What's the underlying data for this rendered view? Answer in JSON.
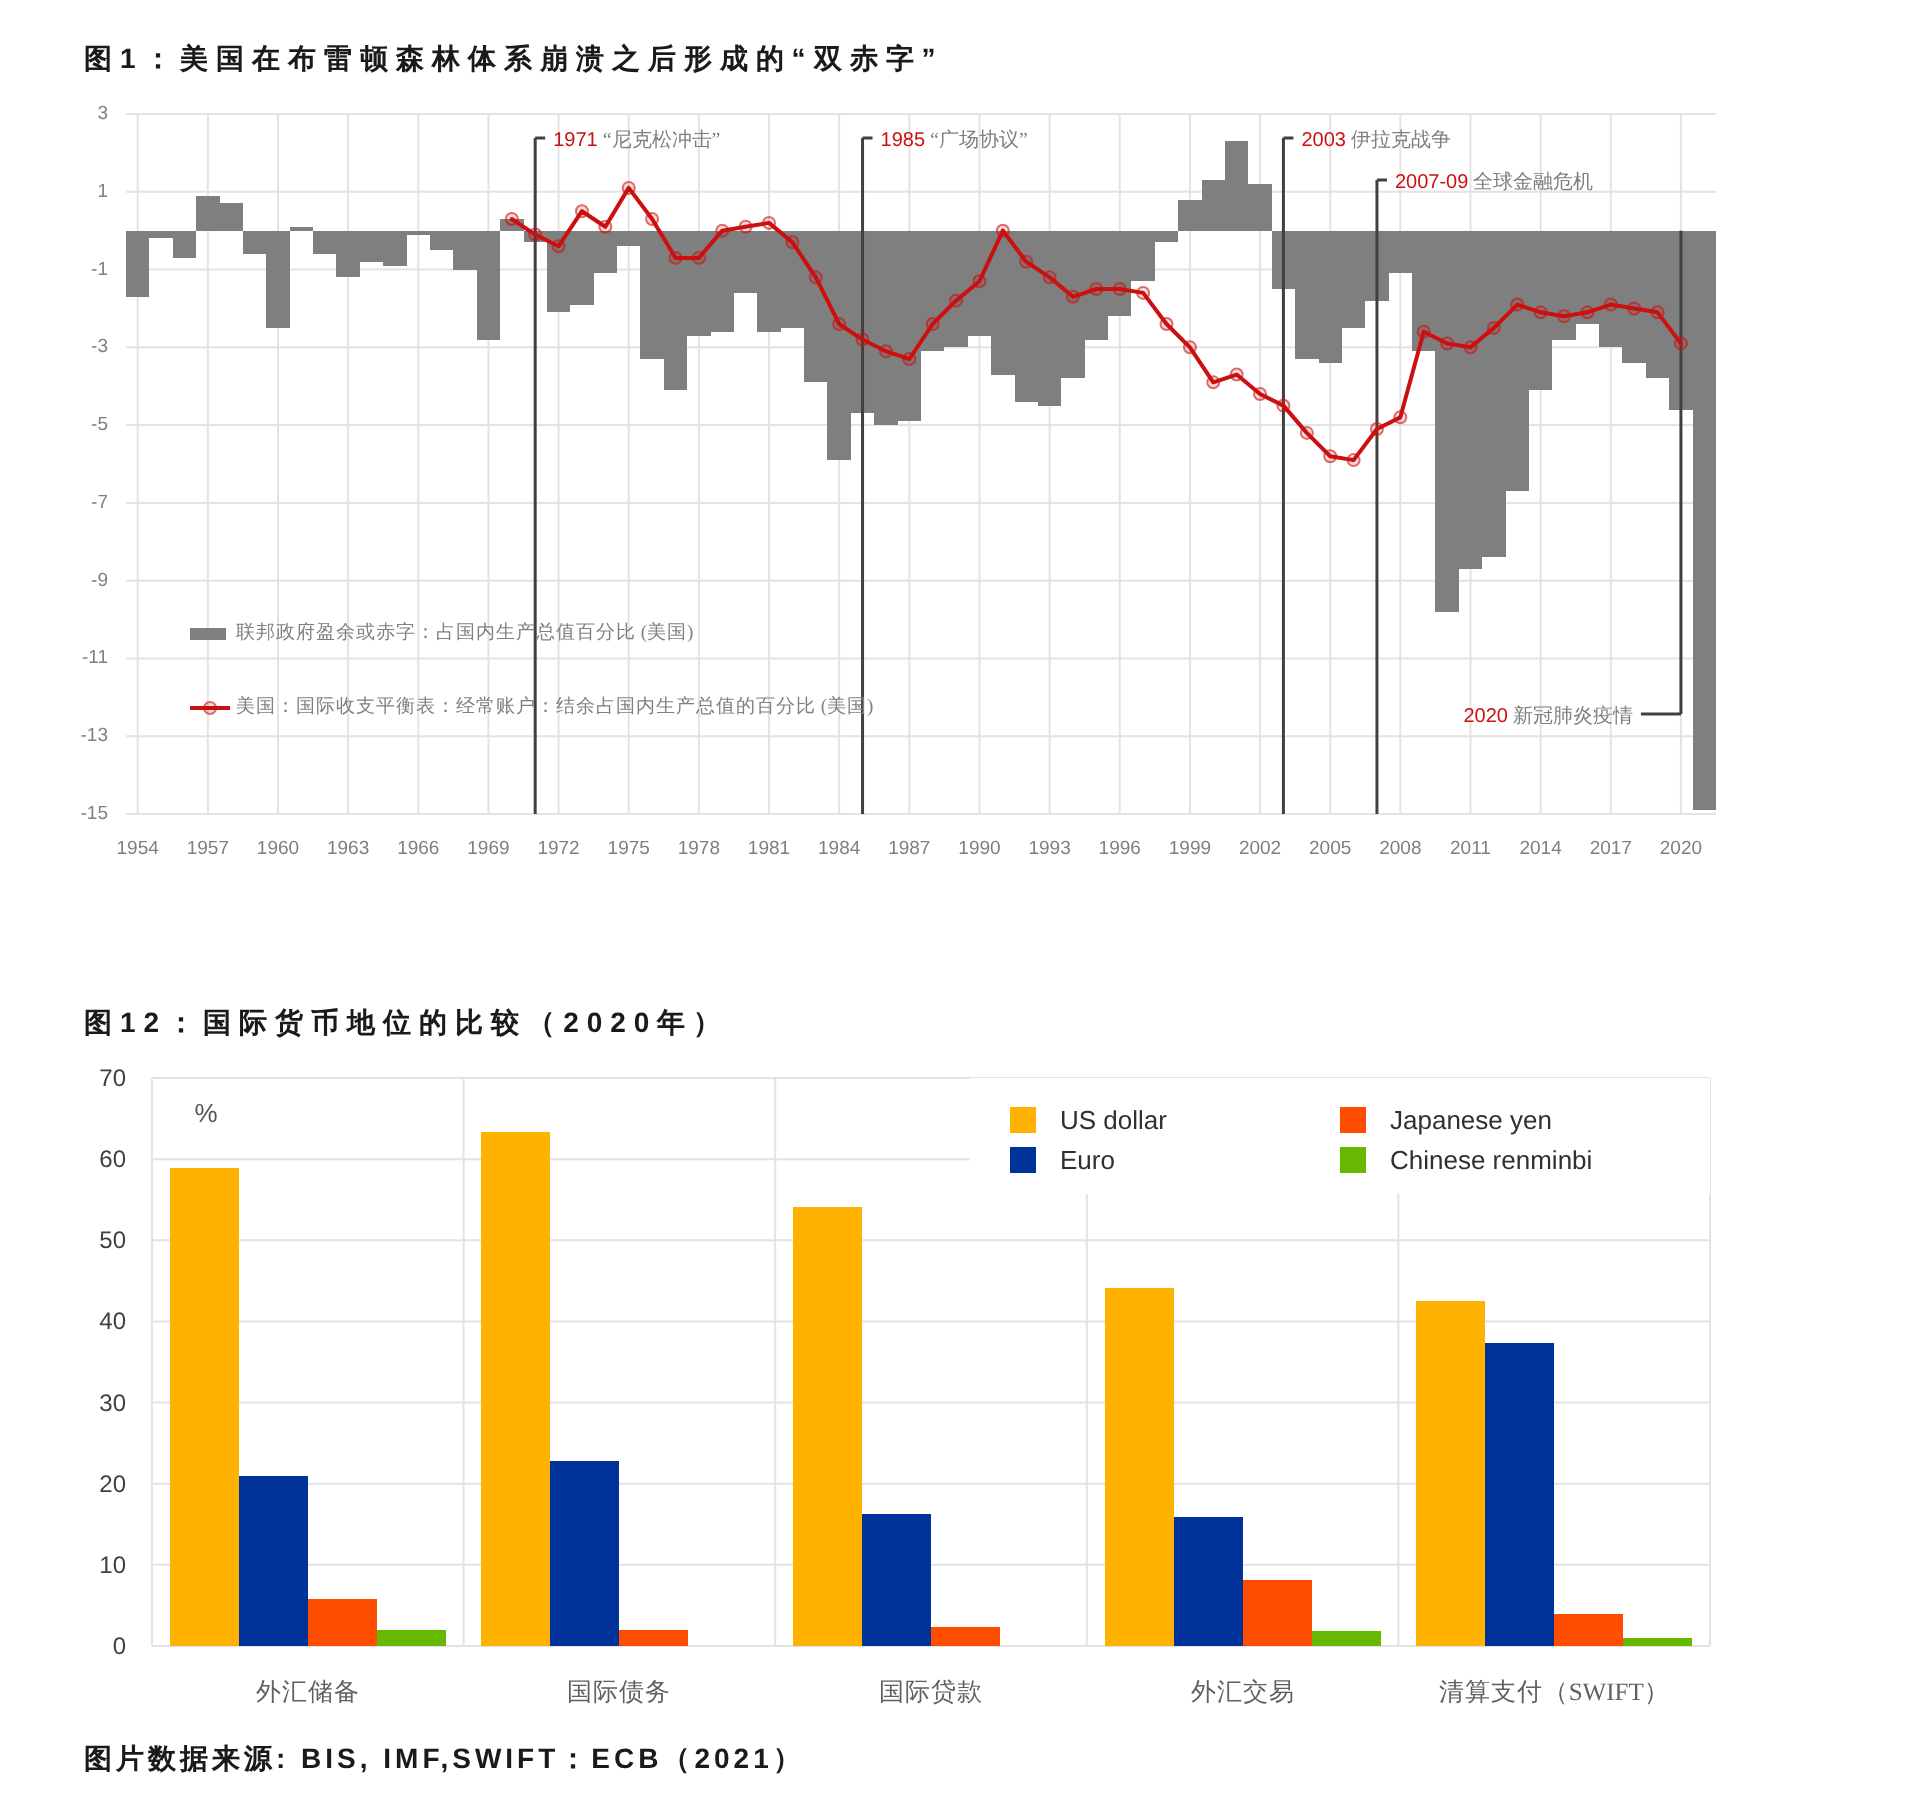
{
  "chart_data": [
    {
      "type": "bar",
      "title": "图1：美国在布雷顿森林体系崩溃之后形成的“双赤字”",
      "x": [
        1954,
        1955,
        1956,
        1957,
        1958,
        1959,
        1960,
        1961,
        1962,
        1963,
        1964,
        1965,
        1966,
        1967,
        1968,
        1969,
        1970,
        1971,
        1972,
        1973,
        1974,
        1975,
        1976,
        1977,
        1978,
        1979,
        1980,
        1981,
        1982,
        1983,
        1984,
        1985,
        1986,
        1987,
        1988,
        1989,
        1990,
        1991,
        1992,
        1993,
        1994,
        1995,
        1996,
        1997,
        1998,
        1999,
        2000,
        2001,
        2002,
        2003,
        2004,
        2005,
        2006,
        2007,
        2008,
        2009,
        2010,
        2011,
        2012,
        2013,
        2014,
        2015,
        2016,
        2017,
        2018,
        2019,
        2020,
        2021
      ],
      "series": [
        {
          "name": "联邦政府盈余或赤字：占国内生产总值百分比 (美国)",
          "color": "#7f7f7f",
          "values": [
            -1.7,
            -0.2,
            -0.7,
            0.9,
            0.7,
            -0.6,
            -2.5,
            0.1,
            -0.6,
            -1.2,
            -0.8,
            -0.9,
            -0.1,
            -0.5,
            -1.0,
            -2.8,
            0.3,
            -0.3,
            -2.1,
            -1.9,
            -1.1,
            -0.4,
            -3.3,
            -4.1,
            -2.7,
            -2.6,
            -1.6,
            -2.6,
            -2.5,
            -3.9,
            -5.9,
            -4.7,
            -5.0,
            -4.9,
            -3.1,
            -3.0,
            -2.7,
            -3.7,
            -4.4,
            -4.5,
            -3.8,
            -2.8,
            -2.2,
            -1.3,
            -0.3,
            0.8,
            1.3,
            2.3,
            1.2,
            -1.5,
            -3.3,
            -3.4,
            -2.5,
            -1.8,
            -1.1,
            -3.1,
            -9.8,
            -8.7,
            -8.4,
            -6.7,
            -4.1,
            -2.8,
            -2.4,
            -3.0,
            -3.4,
            -3.8,
            -4.6,
            -14.9
          ]
        },
        {
          "name": "美国：国际收支平衡表：经常账户：结余占国内生产总值的百分比 (美国)",
          "type": "line",
          "color": "#cc1010",
          "x": [
            1970,
            1971,
            1972,
            1973,
            1974,
            1975,
            1976,
            1977,
            1978,
            1979,
            1980,
            1981,
            1982,
            1983,
            1984,
            1985,
            1986,
            1987,
            1988,
            1989,
            1990,
            1991,
            1992,
            1993,
            1994,
            1995,
            1996,
            1997,
            1998,
            1999,
            2000,
            2001,
            2002,
            2003,
            2004,
            2005,
            2006,
            2007,
            2008,
            2009,
            2010,
            2011,
            2012,
            2013,
            2014,
            2015,
            2016,
            2017,
            2018,
            2019,
            2020
          ],
          "values": [
            0.3,
            -0.1,
            -0.4,
            0.5,
            0.1,
            1.1,
            0.3,
            -0.7,
            -0.7,
            0.0,
            0.1,
            0.2,
            -0.3,
            -1.2,
            -2.4,
            -2.8,
            -3.1,
            -3.3,
            -2.4,
            -1.8,
            -1.3,
            0.0,
            -0.8,
            -1.2,
            -1.7,
            -1.5,
            -1.5,
            -1.6,
            -2.4,
            -3.0,
            -3.9,
            -3.7,
            -4.2,
            -4.5,
            -5.2,
            -5.8,
            -5.9,
            -5.1,
            -4.8,
            -2.6,
            -2.9,
            -3.0,
            -2.5,
            -1.9,
            -2.1,
            -2.2,
            -2.1,
            -1.9,
            -2.0,
            -2.1,
            -2.9
          ]
        }
      ],
      "xlim": [
        1953.5,
        2021.5
      ],
      "xticks": [
        1954,
        1957,
        1960,
        1963,
        1966,
        1969,
        1972,
        1975,
        1978,
        1981,
        1984,
        1987,
        1990,
        1993,
        1996,
        1999,
        2002,
        2005,
        2008,
        2011,
        2014,
        2017,
        2020
      ],
      "ylim": [
        -15,
        3
      ],
      "yticks": [
        3,
        1,
        -1,
        -3,
        -5,
        -7,
        -9,
        -11,
        -13,
        -15
      ],
      "grid": true,
      "legend": "bottom left",
      "marker": "circle",
      "ref_lines": [
        {
          "axis": "x",
          "value": 1971,
          "label": "1971 “尼克松冲击”",
          "color": "#404040"
        },
        {
          "axis": "x",
          "value": 1985,
          "label": "1985 “广场协议”",
          "color": "#404040"
        },
        {
          "axis": "x",
          "value": 2003,
          "label": "2003 伊拉克战争",
          "color": "#404040"
        },
        {
          "axis": "x",
          "value": 2007,
          "label": "2007-09 全球金融危机",
          "color": "#404040"
        },
        {
          "axis": "x",
          "value": 2020,
          "label": "2020 新冠肺炎疫情",
          "color": "#404040"
        }
      ]
    },
    {
      "type": "bar",
      "title": "图12：国际货币地位的比较（2020年）",
      "ylabel": "%",
      "categories": [
        "外汇储备",
        "国际债务",
        "国际贷款",
        "外汇交易",
        "清算支付（SWIFT）"
      ],
      "series": [
        {
          "name": "US dollar",
          "color": "#ffb300",
          "values": [
            58.9,
            63.4,
            54.1,
            44.1,
            42.5
          ]
        },
        {
          "name": "Euro",
          "color": "#003399",
          "values": [
            21.0,
            22.8,
            16.3,
            15.9,
            37.4
          ]
        },
        {
          "name": "Japanese yen",
          "color": "#ff4d00",
          "values": [
            5.8,
            2.0,
            2.3,
            8.1,
            4.0
          ]
        },
        {
          "name": "Chinese renminbi",
          "color": "#66b800",
          "values": [
            2.0,
            null,
            null,
            1.9,
            1.0
          ]
        }
      ],
      "ylim": [
        0,
        70
      ],
      "yticks": [
        0,
        10,
        20,
        30,
        40,
        50,
        60,
        70
      ],
      "grid": true,
      "legend": "top right",
      "annotations": [
        "图片数据来源: BIS, IMF,SWIFT：ECB（2021）"
      ]
    }
  ]
}
